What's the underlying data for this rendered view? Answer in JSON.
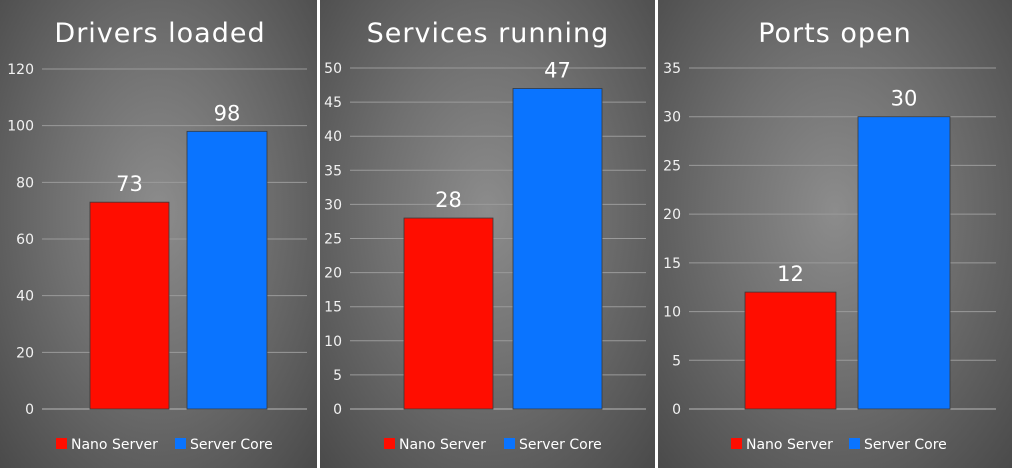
{
  "chart_data": [
    {
      "type": "bar",
      "title": "Drivers loaded",
      "categories": [
        "Nano Server",
        "Server Core"
      ],
      "values": [
        73,
        98
      ],
      "colors": [
        "#ff0d00",
        "#0a74ff"
      ],
      "ylim": [
        0,
        120
      ],
      "yticks": [
        0,
        20,
        40,
        60,
        80,
        100,
        120
      ],
      "legend": [
        "Nano Server",
        "Server Core"
      ],
      "legend_position": "bottom",
      "grid": true
    },
    {
      "type": "bar",
      "title": "Services running",
      "categories": [
        "Nano Server",
        "Server Core"
      ],
      "values": [
        28,
        47
      ],
      "colors": [
        "#ff0d00",
        "#0a74ff"
      ],
      "ylim": [
        0,
        50
      ],
      "yticks": [
        0,
        5,
        10,
        15,
        20,
        25,
        30,
        35,
        40,
        45,
        50
      ],
      "legend": [
        "Nano Server",
        "Server Core"
      ],
      "legend_position": "bottom",
      "grid": true
    },
    {
      "type": "bar",
      "title": "Ports open",
      "categories": [
        "Nano Server",
        "Server Core"
      ],
      "values": [
        12,
        30
      ],
      "colors": [
        "#ff0d00",
        "#0a74ff"
      ],
      "ylim": [
        0,
        35
      ],
      "yticks": [
        0,
        5,
        10,
        15,
        20,
        25,
        30,
        35
      ],
      "legend": [
        "Nano Server",
        "Server Core"
      ],
      "legend_position": "bottom",
      "grid": true
    }
  ]
}
